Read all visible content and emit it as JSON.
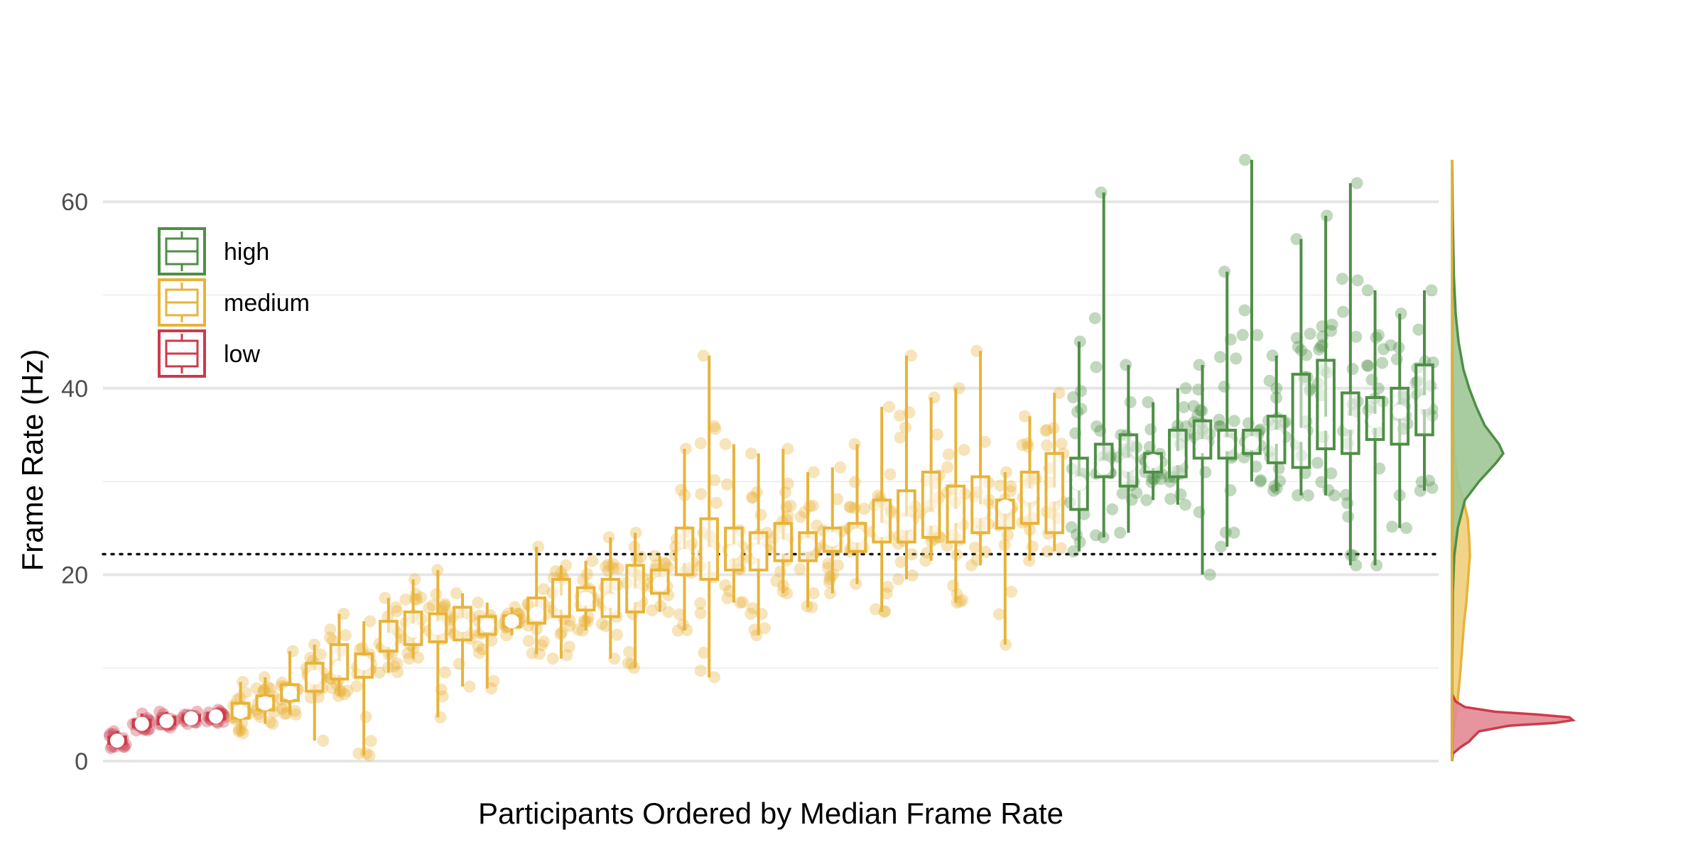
{
  "chart_data": {
    "type": "boxplot",
    "title": "",
    "xlabel": "Participants Ordered by Median Frame Rate",
    "ylabel": "Frame Rate (Hz)",
    "ylim": [
      0,
      65
    ],
    "y_ticks": [
      0,
      20,
      40,
      60
    ],
    "reference_line": 22.2,
    "grid": true,
    "legend": {
      "placement": "top-left",
      "entries": [
        {
          "name": "high",
          "color": "#4e8f46"
        },
        {
          "name": "medium",
          "color": "#e8b339"
        },
        {
          "name": "low",
          "color": "#cc3b4b"
        }
      ]
    },
    "colors": {
      "high": "#4e8f46",
      "medium": "#e8b339",
      "low": "#cc3b4b"
    },
    "marginal_density": true,
    "participants": [
      {
        "group": "low",
        "min": 1.4,
        "q1": 1.9,
        "median": 2.2,
        "q3": 2.6,
        "max": 3.2
      },
      {
        "group": "low",
        "min": 3.3,
        "q1": 3.7,
        "median": 4.0,
        "q3": 4.4,
        "max": 5.1
      },
      {
        "group": "low",
        "min": 3.6,
        "q1": 4.0,
        "median": 4.3,
        "q3": 4.7,
        "max": 5.3
      },
      {
        "group": "low",
        "min": 4.0,
        "q1": 4.4,
        "median": 4.6,
        "q3": 4.9,
        "max": 5.3
      },
      {
        "group": "low",
        "min": 4.1,
        "q1": 4.5,
        "median": 4.8,
        "q3": 5.1,
        "max": 5.5
      },
      {
        "group": "medium",
        "min": 3.0,
        "q1": 4.6,
        "median": 5.3,
        "q3": 6.2,
        "max": 8.5
      },
      {
        "group": "medium",
        "min": 4.0,
        "q1": 5.5,
        "median": 6.2,
        "q3": 7.0,
        "max": 9.0
      },
      {
        "group": "medium",
        "min": 5.0,
        "q1": 6.5,
        "median": 7.3,
        "q3": 8.2,
        "max": 11.8
      },
      {
        "group": "medium",
        "min": 2.2,
        "q1": 7.5,
        "median": 9.0,
        "q3": 10.5,
        "max": 12.5
      },
      {
        "group": "medium",
        "min": 7.0,
        "q1": 8.8,
        "median": 10.0,
        "q3": 12.5,
        "max": 15.8
      },
      {
        "group": "medium",
        "min": 0.6,
        "q1": 9.0,
        "median": 10.5,
        "q3": 11.5,
        "max": 15.0
      },
      {
        "group": "medium",
        "min": 9.5,
        "q1": 11.8,
        "median": 13.0,
        "q3": 15.0,
        "max": 17.5
      },
      {
        "group": "medium",
        "min": 11.0,
        "q1": 12.5,
        "median": 14.0,
        "q3": 16.0,
        "max": 19.5
      },
      {
        "group": "medium",
        "min": 4.7,
        "q1": 12.8,
        "median": 14.3,
        "q3": 15.8,
        "max": 20.5
      },
      {
        "group": "medium",
        "min": 8.0,
        "q1": 13.0,
        "median": 14.6,
        "q3": 16.5,
        "max": 18.0
      },
      {
        "group": "medium",
        "min": 7.8,
        "q1": 13.6,
        "median": 14.6,
        "q3": 15.5,
        "max": 17.0
      },
      {
        "group": "medium",
        "min": 13.5,
        "q1": 14.4,
        "median": 15.0,
        "q3": 15.6,
        "max": 16.5
      },
      {
        "group": "medium",
        "min": 11.5,
        "q1": 14.8,
        "median": 15.8,
        "q3": 17.5,
        "max": 23.0
      },
      {
        "group": "medium",
        "min": 11.0,
        "q1": 15.5,
        "median": 17.0,
        "q3": 19.5,
        "max": 21.0
      },
      {
        "group": "medium",
        "min": 14.0,
        "q1": 16.2,
        "median": 17.4,
        "q3": 18.6,
        "max": 21.5
      },
      {
        "group": "medium",
        "min": 11.0,
        "q1": 15.5,
        "median": 17.2,
        "q3": 19.5,
        "max": 24.0
      },
      {
        "group": "medium",
        "min": 10.0,
        "q1": 16.0,
        "median": 17.8,
        "q3": 21.0,
        "max": 24.5
      },
      {
        "group": "medium",
        "min": 16.0,
        "q1": 18.0,
        "median": 19.0,
        "q3": 20.5,
        "max": 22.0
      },
      {
        "group": "medium",
        "min": 14.0,
        "q1": 20.0,
        "median": 22.0,
        "q3": 25.0,
        "max": 33.5
      },
      {
        "group": "medium",
        "min": 9.0,
        "q1": 19.5,
        "median": 22.2,
        "q3": 26.0,
        "max": 43.5
      },
      {
        "group": "medium",
        "min": 17.0,
        "q1": 20.5,
        "median": 22.5,
        "q3": 25.0,
        "max": 34.0
      },
      {
        "group": "medium",
        "min": 13.5,
        "q1": 20.5,
        "median": 22.5,
        "q3": 24.5,
        "max": 33.0
      },
      {
        "group": "medium",
        "min": 18.0,
        "q1": 21.5,
        "median": 23.0,
        "q3": 25.5,
        "max": 33.5
      },
      {
        "group": "medium",
        "min": 16.5,
        "q1": 21.5,
        "median": 23.2,
        "q3": 24.5,
        "max": 31.0
      },
      {
        "group": "medium",
        "min": 18.0,
        "q1": 22.5,
        "median": 23.8,
        "q3": 25.0,
        "max": 31.5
      },
      {
        "group": "medium",
        "min": 19.0,
        "q1": 22.5,
        "median": 24.2,
        "q3": 25.5,
        "max": 34.0
      },
      {
        "group": "medium",
        "min": 16.0,
        "q1": 23.5,
        "median": 24.8,
        "q3": 28.0,
        "max": 38.0
      },
      {
        "group": "medium",
        "min": 19.5,
        "q1": 23.5,
        "median": 25.5,
        "q3": 29.0,
        "max": 43.5
      },
      {
        "group": "medium",
        "min": 21.5,
        "q1": 24.0,
        "median": 26.0,
        "q3": 31.0,
        "max": 39.0
      },
      {
        "group": "medium",
        "min": 17.0,
        "q1": 23.5,
        "median": 26.3,
        "q3": 29.5,
        "max": 40.0
      },
      {
        "group": "medium",
        "min": 21.0,
        "q1": 24.5,
        "median": 26.8,
        "q3": 30.5,
        "max": 44.0
      },
      {
        "group": "medium",
        "min": 12.5,
        "q1": 25.0,
        "median": 27.3,
        "q3": 28.0,
        "max": 31.0
      },
      {
        "group": "medium",
        "min": 21.5,
        "q1": 25.5,
        "median": 28.5,
        "q3": 31.0,
        "max": 37.0
      },
      {
        "group": "medium",
        "min": 22.5,
        "q1": 24.5,
        "median": 28.6,
        "q3": 33.0,
        "max": 39.5
      },
      {
        "group": "high",
        "min": 22.5,
        "q1": 27.0,
        "median": 29.8,
        "q3": 32.5,
        "max": 45.0
      },
      {
        "group": "high",
        "min": 24.0,
        "q1": 30.5,
        "median": 31.5,
        "q3": 34.0,
        "max": 61.0
      },
      {
        "group": "high",
        "min": 24.5,
        "q1": 29.5,
        "median": 31.8,
        "q3": 35.0,
        "max": 42.5
      },
      {
        "group": "high",
        "min": 28.0,
        "q1": 31.0,
        "median": 32.2,
        "q3": 33.0,
        "max": 38.5
      },
      {
        "group": "high",
        "min": 27.5,
        "q1": 30.5,
        "median": 32.5,
        "q3": 35.5,
        "max": 40.0
      },
      {
        "group": "high",
        "min": 20.0,
        "q1": 32.5,
        "median": 33.8,
        "q3": 36.5,
        "max": 42.5
      },
      {
        "group": "high",
        "min": 23.0,
        "q1": 32.5,
        "median": 34.0,
        "q3": 35.5,
        "max": 52.5
      },
      {
        "group": "high",
        "min": 30.0,
        "q1": 33.0,
        "median": 34.1,
        "q3": 35.5,
        "max": 64.5
      },
      {
        "group": "high",
        "min": 29.0,
        "q1": 32.0,
        "median": 34.8,
        "q3": 37.0,
        "max": 43.5
      },
      {
        "group": "high",
        "min": 28.5,
        "q1": 31.5,
        "median": 35.0,
        "q3": 41.5,
        "max": 56.0
      },
      {
        "group": "high",
        "min": 28.5,
        "q1": 33.5,
        "median": 36.2,
        "q3": 43.0,
        "max": 58.5
      },
      {
        "group": "high",
        "min": 21.0,
        "q1": 33.0,
        "median": 36.3,
        "q3": 39.5,
        "max": 62.0
      },
      {
        "group": "high",
        "min": 21.0,
        "q1": 34.5,
        "median": 36.5,
        "q3": 39.0,
        "max": 50.5
      },
      {
        "group": "high",
        "min": 25.0,
        "q1": 34.0,
        "median": 37.5,
        "q3": 40.0,
        "max": 48.0
      },
      {
        "group": "high",
        "min": 29.0,
        "q1": 35.0,
        "median": 38.5,
        "q3": 42.5,
        "max": 50.5
      }
    ]
  }
}
